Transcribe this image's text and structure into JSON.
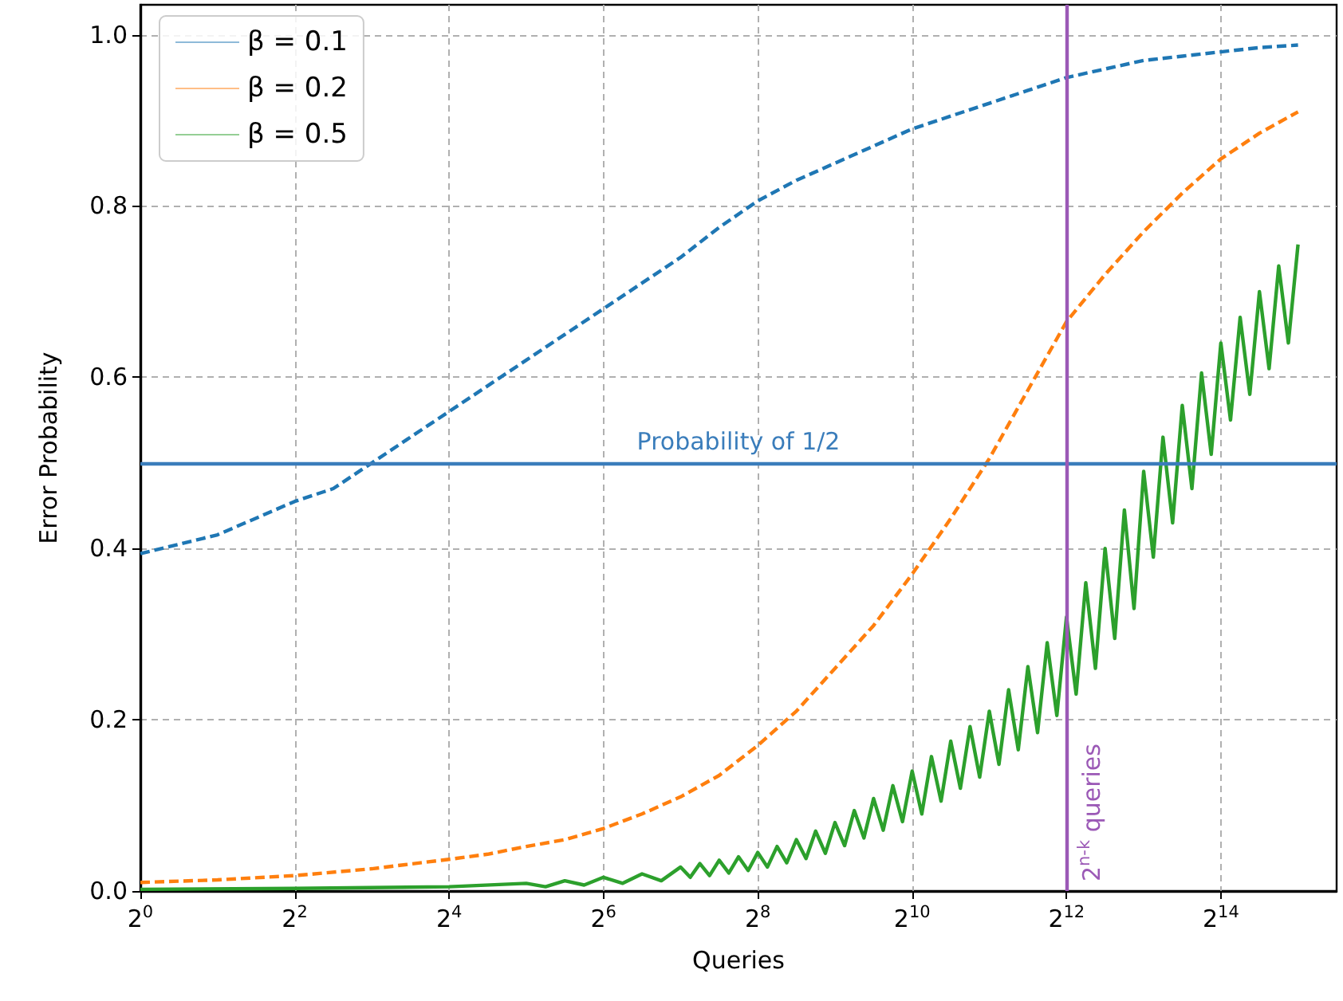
{
  "chart_data": {
    "type": "line",
    "xlabel": "Queries",
    "ylabel": "Error Probability",
    "log": "x",
    "grid": true,
    "legend": "top left",
    "marker": "none",
    "xlim": [
      1,
      46341
    ],
    "ylim": [
      0,
      1.035
    ],
    "xticks": [
      {
        "value": 1,
        "label": "2$^{0}$"
      },
      {
        "value": 4,
        "label": "2$^{2}$"
      },
      {
        "value": 16,
        "label": "2$^{4}$"
      },
      {
        "value": 64,
        "label": "2$^{6}$"
      },
      {
        "value": 256,
        "label": "2$^{8}$"
      },
      {
        "value": 1024,
        "label": "2$^{10}$"
      },
      {
        "value": 4096,
        "label": "2$^{12}$"
      },
      {
        "value": 16384,
        "label": "2$^{14}$"
      }
    ],
    "yticks": [
      {
        "value": 0,
        "label": "0.0"
      },
      0.2,
      0.4,
      0.6,
      0.8,
      {
        "value": 1,
        "label": "1.0"
      }
    ],
    "series": [
      {
        "name": "β = 0.1",
        "color": "#1f77b4",
        "line_style": "dashed",
        "x": [
          1,
          2,
          4,
          5.657,
          8,
          11.31,
          16,
          22.63,
          32,
          45.25,
          64,
          90.51,
          128,
          181,
          256,
          362,
          512,
          724.1,
          1024,
          1448.2,
          2048,
          2896.3,
          4096,
          5792.6,
          8192,
          11585,
          16384,
          23170,
          32768
        ],
        "values": [
          0.394,
          0.416,
          0.455,
          0.47,
          0.5,
          0.53,
          0.56,
          0.59,
          0.62,
          0.65,
          0.68,
          0.71,
          0.74,
          0.775,
          0.806,
          0.83,
          0.85,
          0.87,
          0.89,
          0.905,
          0.92,
          0.935,
          0.95,
          0.96,
          0.97,
          0.975,
          0.98,
          0.985,
          0.988
        ]
      },
      {
        "name": "β = 0.2",
        "color": "#ff7f0e",
        "line_style": "dashed",
        "x": [
          1,
          2,
          4,
          8,
          16,
          22.63,
          32,
          45.25,
          64,
          90.51,
          128,
          181,
          256,
          362,
          512,
          724.1,
          1024,
          1448.2,
          2048,
          2896.3,
          4096,
          5792.6,
          8192,
          11585,
          16384,
          23170,
          32768
        ],
        "values": [
          0.01,
          0.013,
          0.018,
          0.026,
          0.037,
          0.043,
          0.052,
          0.06,
          0.073,
          0.09,
          0.11,
          0.135,
          0.17,
          0.21,
          0.26,
          0.31,
          0.37,
          0.435,
          0.505,
          0.585,
          0.665,
          0.72,
          0.77,
          0.815,
          0.855,
          0.885,
          0.91
        ]
      },
      {
        "name": "β = 0.5",
        "color": "#2ca02c",
        "line_style": "solid",
        "x": [
          1,
          4,
          16,
          32,
          38.05,
          45.25,
          53.82,
          64,
          76.11,
          90.51,
          107.6,
          128,
          139.6,
          152.2,
          166.0,
          181.0,
          197.4,
          215.3,
          234.8,
          256,
          279.2,
          304.4,
          332.0,
          362.0,
          394.8,
          430.5,
          469.5,
          512,
          558.3,
          608.9,
          664.0,
          724.1,
          789.6,
          861.1,
          939.0,
          1024,
          1116.7,
          1217.7,
          1327.9,
          1448.2,
          1579.2,
          1722.2,
          1878.0,
          2048,
          2233.3,
          2435.5,
          2655.8,
          2896.3,
          3158.4,
          3444.3,
          3756.0,
          4096,
          4466.7,
          4870.9,
          5311.7,
          5792.6,
          6316.9,
          6888.7,
          7512.1,
          8192,
          8933.3,
          9741.8,
          10623,
          11585,
          12634,
          13777,
          15024,
          16384,
          17867,
          19484,
          21247,
          23170,
          25268,
          27554,
          30048,
          32768
        ],
        "values": [
          0.002,
          0.003,
          0.005,
          0.009,
          0.005,
          0.012,
          0.007,
          0.016,
          0.009,
          0.02,
          0.012,
          0.028,
          0.016,
          0.032,
          0.018,
          0.036,
          0.021,
          0.04,
          0.024,
          0.045,
          0.028,
          0.052,
          0.033,
          0.06,
          0.038,
          0.07,
          0.044,
          0.08,
          0.053,
          0.094,
          0.062,
          0.108,
          0.071,
          0.123,
          0.081,
          0.14,
          0.09,
          0.157,
          0.105,
          0.175,
          0.12,
          0.192,
          0.133,
          0.21,
          0.148,
          0.235,
          0.165,
          0.262,
          0.185,
          0.29,
          0.205,
          0.32,
          0.23,
          0.36,
          0.26,
          0.4,
          0.295,
          0.445,
          0.33,
          0.49,
          0.39,
          0.53,
          0.43,
          0.567,
          0.47,
          0.605,
          0.51,
          0.64,
          0.55,
          0.67,
          0.58,
          0.7,
          0.61,
          0.73,
          0.64,
          0.755
        ]
      }
    ],
    "ref_lines": [
      {
        "axis": "y",
        "value": 0.5,
        "label": "Probability of 1/2",
        "color": "#3a7dbb"
      },
      {
        "axis": "x",
        "value": 4096,
        "label": "2$^{n-k}$ queries",
        "color": "#9b59b6"
      }
    ]
  }
}
